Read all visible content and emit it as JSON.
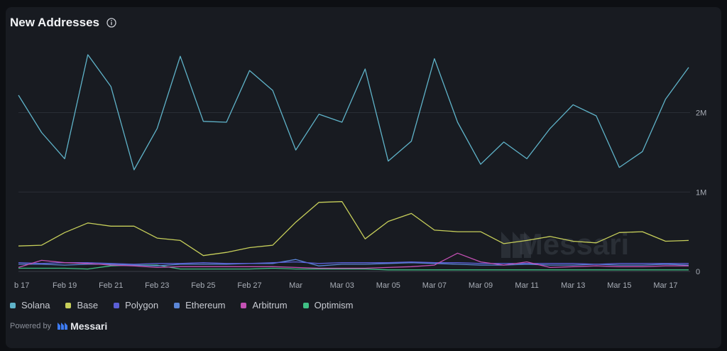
{
  "header": {
    "title": "New Addresses",
    "info_icon": "info-circle-icon"
  },
  "watermark": "Messari",
  "footer": {
    "powered_by": "Powered by",
    "brand": "Messari",
    "brand_icon": "messari-logo-icon"
  },
  "colors": {
    "background": "#181b21",
    "Solana": "#5fb3c9",
    "Base": "#c7cf5a",
    "Polygon": "#5b5fd6",
    "Ethereum": "#5b86d6",
    "Arbitrum": "#c451b4",
    "Optimism": "#3fbf84"
  },
  "chart_data": {
    "type": "line",
    "title": "New Addresses",
    "y_tick_labels": [
      "0",
      "1M",
      "2M"
    ],
    "y_ticks": [
      0,
      1000000,
      2000000
    ],
    "ylim": [
      0,
      2900000
    ],
    "y_axis_position": "right",
    "grid": true,
    "legend": "bottom-left",
    "x_tick_labels": [
      "b 17",
      "Feb 19",
      "Feb 21",
      "Feb 23",
      "Feb 25",
      "Feb 27",
      "Mar",
      "Mar 03",
      "Mar 05",
      "Mar 07",
      "Mar 09",
      "Mar 11",
      "Mar 13",
      "Mar 15",
      "Mar 17"
    ],
    "x": [
      "Feb 17",
      "Feb 18",
      "Feb 19",
      "Feb 20",
      "Feb 21",
      "Feb 22",
      "Feb 23",
      "Feb 24",
      "Feb 25",
      "Feb 26",
      "Feb 27",
      "Feb 28",
      "Mar 01",
      "Mar 02",
      "Mar 03",
      "Mar 04",
      "Mar 05",
      "Mar 06",
      "Mar 07",
      "Mar 08",
      "Mar 09",
      "Mar 10",
      "Mar 11",
      "Mar 12",
      "Mar 13",
      "Mar 14",
      "Mar 15",
      "Mar 16",
      "Mar 17",
      "Mar 18"
    ],
    "series": [
      {
        "name": "Solana",
        "values": [
          2220000,
          1750000,
          1420000,
          2730000,
          2330000,
          1280000,
          1800000,
          2710000,
          1890000,
          1880000,
          2530000,
          2280000,
          1530000,
          1980000,
          1880000,
          2550000,
          1390000,
          1640000,
          2680000,
          1880000,
          1350000,
          1630000,
          1420000,
          1800000,
          2100000,
          1960000,
          1310000,
          1510000,
          2170000,
          2570000
        ]
      },
      {
        "name": "Base",
        "values": [
          320000,
          330000,
          490000,
          610000,
          570000,
          570000,
          420000,
          390000,
          200000,
          240000,
          300000,
          330000,
          620000,
          870000,
          880000,
          410000,
          630000,
          730000,
          520000,
          500000,
          500000,
          350000,
          390000,
          440000,
          380000,
          360000,
          490000,
          500000,
          380000,
          390000
        ]
      },
      {
        "name": "Polygon",
        "values": [
          110000,
          100000,
          110000,
          110000,
          100000,
          90000,
          100000,
          100000,
          110000,
          100000,
          100000,
          110000,
          120000,
          100000,
          110000,
          110000,
          110000,
          120000,
          110000,
          110000,
          100000,
          100000,
          100000,
          100000,
          100000,
          90000,
          100000,
          100000,
          100000,
          100000
        ]
      },
      {
        "name": "Ethereum",
        "values": [
          90000,
          90000,
          80000,
          90000,
          90000,
          80000,
          70000,
          90000,
          90000,
          90000,
          100000,
          100000,
          150000,
          70000,
          90000,
          90000,
          100000,
          110000,
          100000,
          90000,
          80000,
          80000,
          90000,
          80000,
          80000,
          90000,
          80000,
          80000,
          90000,
          80000
        ]
      },
      {
        "name": "Arbitrum",
        "values": [
          50000,
          140000,
          110000,
          100000,
          80000,
          70000,
          50000,
          60000,
          60000,
          60000,
          60000,
          60000,
          50000,
          40000,
          40000,
          40000,
          50000,
          60000,
          80000,
          230000,
          120000,
          80000,
          120000,
          50000,
          60000,
          70000,
          60000,
          60000,
          70000,
          70000
        ]
      },
      {
        "name": "Optimism",
        "values": [
          40000,
          40000,
          40000,
          30000,
          70000,
          80000,
          80000,
          30000,
          30000,
          30000,
          30000,
          40000,
          30000,
          30000,
          30000,
          30000,
          20000,
          20000,
          20000,
          20000,
          20000,
          20000,
          20000,
          20000,
          20000,
          20000,
          20000,
          20000,
          20000,
          20000
        ]
      }
    ]
  }
}
